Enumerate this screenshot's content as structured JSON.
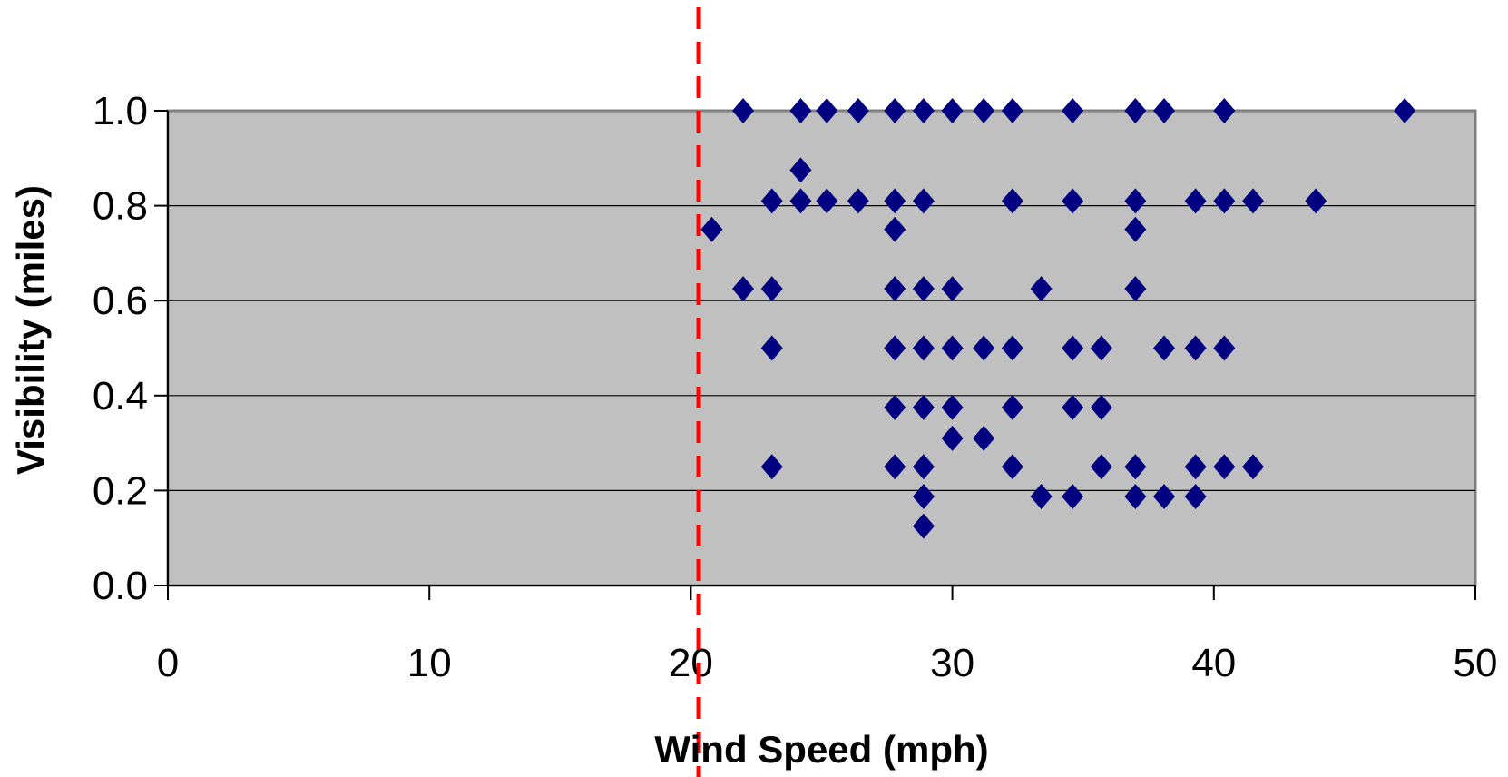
{
  "chart_data": {
    "type": "scatter",
    "title": "",
    "xlabel": "Wind Speed (mph)",
    "ylabel": "Visibility (miles)",
    "xlim": [
      0,
      50
    ],
    "ylim": [
      0,
      1.0
    ],
    "x_ticks": [
      "0",
      "10",
      "20",
      "30",
      "40",
      "50"
    ],
    "y_ticks": [
      "0.0",
      "0.2",
      "0.4",
      "0.6",
      "0.8",
      "1.0"
    ],
    "grid": "horizontal",
    "legend": "none",
    "plot_background": "#c0c0c0",
    "marker_color": "#000080",
    "marker_shape": "diamond",
    "reference_line": {
      "axis": "x",
      "value": 20.3,
      "style": "dashed",
      "color": "#ff0000"
    },
    "points": [
      {
        "x": 22,
        "y": 1.0
      },
      {
        "x": 24.2,
        "y": 1.0
      },
      {
        "x": 25.2,
        "y": 1.0
      },
      {
        "x": 26.4,
        "y": 1.0
      },
      {
        "x": 27.8,
        "y": 1.0
      },
      {
        "x": 28.9,
        "y": 1.0
      },
      {
        "x": 30,
        "y": 1.0
      },
      {
        "x": 31.2,
        "y": 1.0
      },
      {
        "x": 32.3,
        "y": 1.0
      },
      {
        "x": 34.6,
        "y": 1.0
      },
      {
        "x": 37,
        "y": 1.0
      },
      {
        "x": 38.1,
        "y": 1.0
      },
      {
        "x": 40.4,
        "y": 1.0
      },
      {
        "x": 47.3,
        "y": 1.0
      },
      {
        "x": 24.2,
        "y": 0.875
      },
      {
        "x": 23.1,
        "y": 0.81
      },
      {
        "x": 24.2,
        "y": 0.81
      },
      {
        "x": 25.2,
        "y": 0.81
      },
      {
        "x": 26.4,
        "y": 0.81
      },
      {
        "x": 27.8,
        "y": 0.81
      },
      {
        "x": 28.9,
        "y": 0.81
      },
      {
        "x": 32.3,
        "y": 0.81
      },
      {
        "x": 34.6,
        "y": 0.81
      },
      {
        "x": 37,
        "y": 0.81
      },
      {
        "x": 39.3,
        "y": 0.81
      },
      {
        "x": 40.4,
        "y": 0.81
      },
      {
        "x": 41.5,
        "y": 0.81
      },
      {
        "x": 43.9,
        "y": 0.81
      },
      {
        "x": 20.8,
        "y": 0.75
      },
      {
        "x": 27.8,
        "y": 0.75
      },
      {
        "x": 37,
        "y": 0.75
      },
      {
        "x": 22,
        "y": 0.625
      },
      {
        "x": 23.1,
        "y": 0.625
      },
      {
        "x": 27.8,
        "y": 0.625
      },
      {
        "x": 28.9,
        "y": 0.625
      },
      {
        "x": 30,
        "y": 0.625
      },
      {
        "x": 33.4,
        "y": 0.625
      },
      {
        "x": 37,
        "y": 0.625
      },
      {
        "x": 23.1,
        "y": 0.5
      },
      {
        "x": 27.8,
        "y": 0.5
      },
      {
        "x": 28.9,
        "y": 0.5
      },
      {
        "x": 30,
        "y": 0.5
      },
      {
        "x": 31.2,
        "y": 0.5
      },
      {
        "x": 32.3,
        "y": 0.5
      },
      {
        "x": 34.6,
        "y": 0.5
      },
      {
        "x": 35.7,
        "y": 0.5
      },
      {
        "x": 38.1,
        "y": 0.5
      },
      {
        "x": 39.3,
        "y": 0.5
      },
      {
        "x": 40.4,
        "y": 0.5
      },
      {
        "x": 27.8,
        "y": 0.375
      },
      {
        "x": 28.9,
        "y": 0.375
      },
      {
        "x": 30,
        "y": 0.375
      },
      {
        "x": 32.3,
        "y": 0.375
      },
      {
        "x": 34.6,
        "y": 0.375
      },
      {
        "x": 35.7,
        "y": 0.375
      },
      {
        "x": 30,
        "y": 0.31
      },
      {
        "x": 31.2,
        "y": 0.31
      },
      {
        "x": 23.1,
        "y": 0.25
      },
      {
        "x": 27.8,
        "y": 0.25
      },
      {
        "x": 28.9,
        "y": 0.25
      },
      {
        "x": 32.3,
        "y": 0.25
      },
      {
        "x": 35.7,
        "y": 0.25
      },
      {
        "x": 37,
        "y": 0.25
      },
      {
        "x": 39.3,
        "y": 0.25
      },
      {
        "x": 40.4,
        "y": 0.25
      },
      {
        "x": 41.5,
        "y": 0.25
      },
      {
        "x": 28.9,
        "y": 0.1875
      },
      {
        "x": 33.4,
        "y": 0.1875
      },
      {
        "x": 34.6,
        "y": 0.1875
      },
      {
        "x": 37,
        "y": 0.1875
      },
      {
        "x": 38.1,
        "y": 0.1875
      },
      {
        "x": 39.3,
        "y": 0.1875
      },
      {
        "x": 28.9,
        "y": 0.125
      }
    ]
  }
}
